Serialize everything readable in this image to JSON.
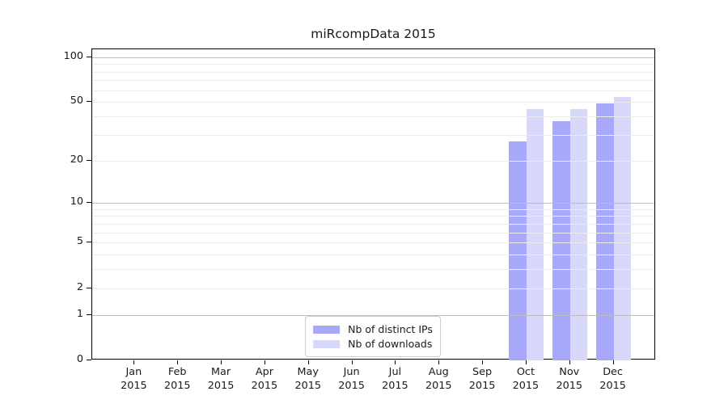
{
  "title": "miRcompData 2015",
  "chart_data": {
    "type": "bar",
    "title": "miRcompData 2015",
    "categories": [
      "Jan",
      "Feb",
      "Mar",
      "Apr",
      "May",
      "Jun",
      "Jul",
      "Aug",
      "Sep",
      "Oct",
      "Nov",
      "Dec"
    ],
    "category_sublabel": "2015",
    "series": [
      {
        "name": "Nb of distinct IPs",
        "color": "#a8a8fa",
        "values": [
          null,
          null,
          null,
          null,
          null,
          null,
          null,
          null,
          null,
          27,
          37,
          49
        ]
      },
      {
        "name": "Nb of downloads",
        "color": "#d8d8fa",
        "values": [
          null,
          null,
          null,
          null,
          null,
          null,
          null,
          null,
          null,
          45,
          45,
          54
        ]
      }
    ],
    "y_scale": "log1p",
    "ylim": [
      0,
      113
    ],
    "y_ticks": [
      0,
      1,
      2,
      5,
      10,
      20,
      50,
      100
    ],
    "y_gridlines_minor": [
      2,
      3,
      4,
      5,
      6,
      7,
      8,
      9,
      20,
      30,
      40,
      50,
      60,
      70,
      80,
      90
    ],
    "y_gridlines_major": [
      1,
      10,
      100
    ],
    "xlabel": "",
    "ylabel": "",
    "grid": true,
    "legend_position": "bottom-center"
  },
  "colors": {
    "background": "#ffffff",
    "text": "#1a1a1a",
    "plot_border": "#000000",
    "grid_minor": "#ececec",
    "grid_major": "#bdbdbd",
    "legend_border": "#cccccc"
  }
}
